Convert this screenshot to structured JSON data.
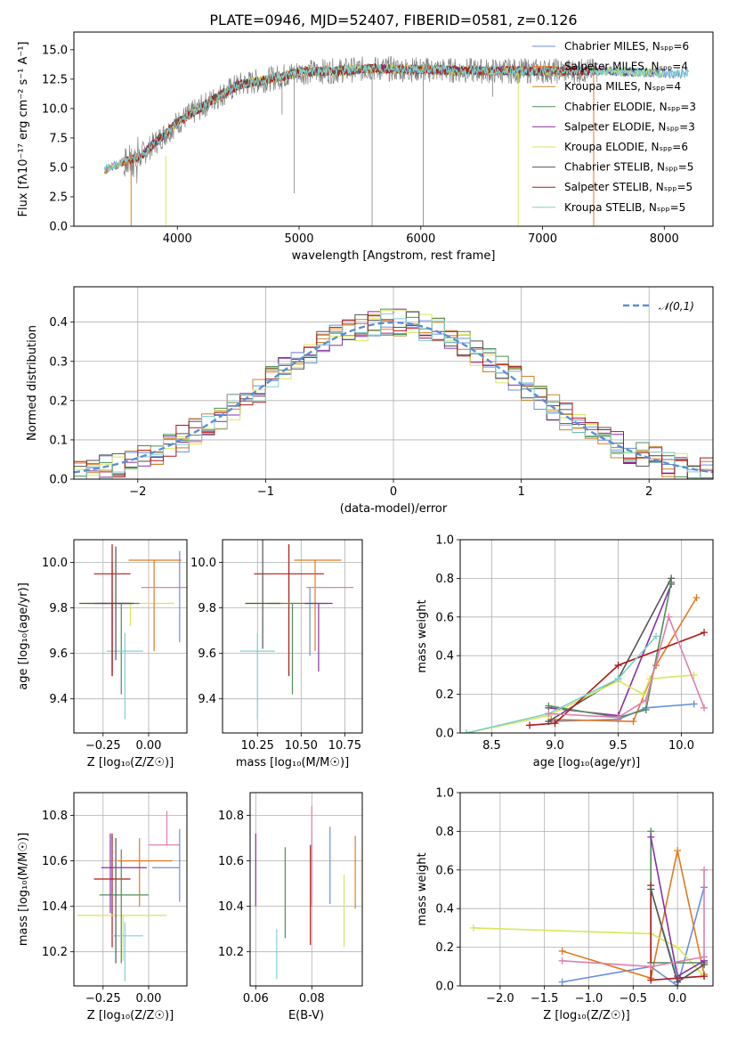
{
  "title": "PLATE=0946, MJD=52407, FIBERID=0581, z=0.126",
  "colors": {
    "Chabrier MILES": "#6b8ee0",
    "Salpeter MILES": "#e07a1f",
    "Kroupa MILES": "#c9862a",
    "Chabrier ELODIE": "#4f8f5a",
    "Salpeter ELODIE": "#8a2fa8",
    "Kroupa ELODIE": "#d9e65a",
    "Chabrier STELIB": "#555555",
    "Salpeter STELIB": "#b01818",
    "Kroupa STELIB": "#7fd0d0",
    "extra": "#e07fb0"
  },
  "chart_data": [
    {
      "type": "line",
      "title": "PLATE=0946, MJD=52407, FIBERID=0581, z=0.126",
      "xlabel": "wavelength [Angstrom, rest frame]",
      "ylabel": "Flux [fλ10⁻¹⁷ erg cm⁻² s⁻¹ A⁻¹]",
      "xlim": [
        3150,
        8400
      ],
      "ylim": [
        0,
        16.5
      ],
      "xticks": [
        "4000",
        "5000",
        "6000",
        "7000",
        "8000"
      ],
      "yticks": [
        "0.0",
        "2.5",
        "5.0",
        "7.5",
        "10.0",
        "12.5",
        "15.0"
      ],
      "legend_position": "top-right",
      "series": [
        {
          "name": "Chabrier MILES, Nₛₚₚ=6"
        },
        {
          "name": "Salpeter MILES, Nₛₚₚ=4"
        },
        {
          "name": "Kroupa MILES, Nₛₚₚ=4"
        },
        {
          "name": "Chabrier ELODIE, Nₛₚₚ=3"
        },
        {
          "name": "Salpeter ELODIE, Nₛₚₚ=3"
        },
        {
          "name": "Kroupa ELODIE, Nₛₚₚ=6"
        },
        {
          "name": "Chabrier STELIB, Nₛₚₚ=5"
        },
        {
          "name": "Salpeter STELIB, Nₛₚₚ=5"
        },
        {
          "name": "Kroupa STELIB, Nₛₚₚ=5"
        }
      ],
      "continuum_x": [
        3400,
        3700,
        4000,
        4300,
        4500,
        4800,
        5000,
        5300,
        5600,
        6000,
        6500,
        7000,
        7500,
        8000,
        8200
      ],
      "continuum_y": [
        4.8,
        6.0,
        8.8,
        10.8,
        12.0,
        12.6,
        13.1,
        13.2,
        13.4,
        13.3,
        13.2,
        13.2,
        13.2,
        13.0,
        13.0
      ]
    },
    {
      "type": "step",
      "xlabel": "(data-model)/error",
      "ylabel": "Normed distribution",
      "xlim": [
        -2.5,
        2.5
      ],
      "ylim": [
        0,
        0.49
      ],
      "xticks": [
        "−2",
        "−1",
        "0",
        "1",
        "2"
      ],
      "yticks": [
        "0.0",
        "0.1",
        "0.2",
        "0.3",
        "0.4"
      ],
      "reference_legend": "𝒩(0,1)",
      "legend_position": "top-right",
      "bin_width": 0.1
    },
    {
      "type": "errorbar",
      "xlabel": "Z [log₁₀(Z/Z☉)]",
      "ylabel": "age  [log₁₀(age/yr)]",
      "xlim": [
        -0.41,
        0.21
      ],
      "ylim": [
        9.25,
        10.1
      ],
      "xticks": [
        "−0.25",
        "0.00"
      ],
      "yticks": [
        "9.4",
        "9.6",
        "9.8",
        "10.0"
      ]
    },
    {
      "type": "errorbar",
      "xlabel": "mass [log₁₀(M/M☉)]",
      "xlim": [
        10.05,
        10.85
      ],
      "ylim": [
        9.25,
        10.1
      ],
      "xticks": [
        "10.25",
        "10.50",
        "10.75"
      ],
      "yticks": [
        "9.4",
        "9.6",
        "9.8",
        "10.0"
      ]
    },
    {
      "type": "line",
      "xlabel": "age  [log₁₀(age/yr)]",
      "ylabel": "mass weight",
      "xlim": [
        8.25,
        10.25
      ],
      "ylim": [
        0,
        1
      ],
      "xticks": [
        "8.5",
        "9.0",
        "9.5",
        "10.0"
      ],
      "yticks": [
        "0.0",
        "0.2",
        "0.4",
        "0.6",
        "0.8",
        "1.0"
      ],
      "series": [
        {
          "x": [
            8.95,
            9.5,
            9.72,
            10.1
          ],
          "y": [
            0.06,
            0.07,
            0.13,
            0.15
          ]
        },
        {
          "x": [
            8.97,
            9.62,
            9.8,
            10.12
          ],
          "y": [
            0.07,
            0.06,
            0.35,
            0.7
          ]
        },
        {
          "x": [
            8.95,
            9.5,
            9.92
          ],
          "y": [
            0.06,
            0.28,
            0.8
          ]
        },
        {
          "x": [
            8.95,
            9.5,
            9.92
          ],
          "y": [
            0.13,
            0.09,
            0.77
          ]
        },
        {
          "x": [
            8.3,
            8.95,
            9.5,
            9.7,
            9.75,
            10.1
          ],
          "y": [
            0.0,
            0.09,
            0.27,
            0.2,
            0.28,
            0.3
          ]
        },
        {
          "x": [
            8.95,
            9.5,
            9.72,
            9.92
          ],
          "y": [
            0.14,
            0.08,
            0.12,
            0.78
          ]
        },
        {
          "x": [
            8.8,
            9.0,
            9.5,
            10.18
          ],
          "y": [
            0.04,
            0.05,
            0.35,
            0.52
          ]
        },
        {
          "x": [
            8.3,
            8.95,
            9.5,
            9.8
          ],
          "y": [
            0.0,
            0.1,
            0.28,
            0.5
          ]
        },
        {
          "x": [
            8.95,
            9.5,
            9.72,
            9.9,
            10.18
          ],
          "y": [
            0.1,
            0.08,
            0.17,
            0.6,
            0.13
          ]
        }
      ]
    },
    {
      "type": "errorbar",
      "xlabel": "Z [log₁₀(Z/Z☉)]",
      "ylabel": "mass [log₁₀(M/M☉)]",
      "xlim": [
        -0.41,
        0.21
      ],
      "ylim": [
        10.05,
        10.9
      ],
      "xticks": [
        "−0.25",
        "0.00"
      ],
      "yticks": [
        "10.2",
        "10.4",
        "10.6",
        "10.8"
      ]
    },
    {
      "type": "errorbar",
      "xlabel": "E(B-V)",
      "xlim": [
        0.058,
        0.098
      ],
      "ylim": [
        10.05,
        10.9
      ],
      "xticks": [
        "0.06",
        "0.08"
      ],
      "yticks": [
        "10.2",
        "10.4",
        "10.6",
        "10.8"
      ]
    },
    {
      "type": "line",
      "xlabel": "Z [log₁₀(Z/Z☉)]",
      "ylabel": "mass weight",
      "xlim": [
        -2.45,
        0.4
      ],
      "ylim": [
        0,
        1
      ],
      "xticks": [
        "−2.0",
        "−1.5",
        "−1.0",
        "−0.5",
        "0.0"
      ],
      "yticks": [
        "0.0",
        "0.2",
        "0.4",
        "0.6",
        "0.8",
        "1.0"
      ],
      "series": [
        {
          "x": [
            -1.3,
            -0.3,
            0.0,
            0.3
          ],
          "y": [
            0.02,
            0.1,
            0.0,
            0.51
          ]
        },
        {
          "x": [
            -1.3,
            -0.3,
            0.0,
            0.3
          ],
          "y": [
            0.18,
            0.04,
            0.7,
            0.06
          ]
        },
        {
          "x": [
            -2.3,
            -0.3,
            0.0,
            0.3
          ],
          "y": [
            0.3,
            0.27,
            0.2,
            0.05
          ]
        },
        {
          "x": [
            -0.3,
            -0.3,
            0.3
          ],
          "y": [
            0.8,
            0.12,
            0.12
          ]
        },
        {
          "x": [
            -0.3,
            0.0,
            0.3
          ],
          "y": [
            0.77,
            0.05,
            0.13
          ]
        },
        {
          "x": [
            -0.3,
            0.0,
            0.3
          ],
          "y": [
            0.5,
            0.04,
            0.05
          ]
        },
        {
          "x": [
            -0.3,
            -0.3,
            0.0,
            0.3
          ],
          "y": [
            0.52,
            0.03,
            0.04,
            0.05
          ]
        },
        {
          "x": [
            -0.3,
            0.0,
            0.3
          ],
          "y": [
            0.5,
            0.02,
            0.11
          ]
        },
        {
          "x": [
            -1.3,
            -0.3,
            0.3,
            0.3
          ],
          "y": [
            0.13,
            0.1,
            0.15,
            0.6
          ]
        }
      ]
    }
  ]
}
